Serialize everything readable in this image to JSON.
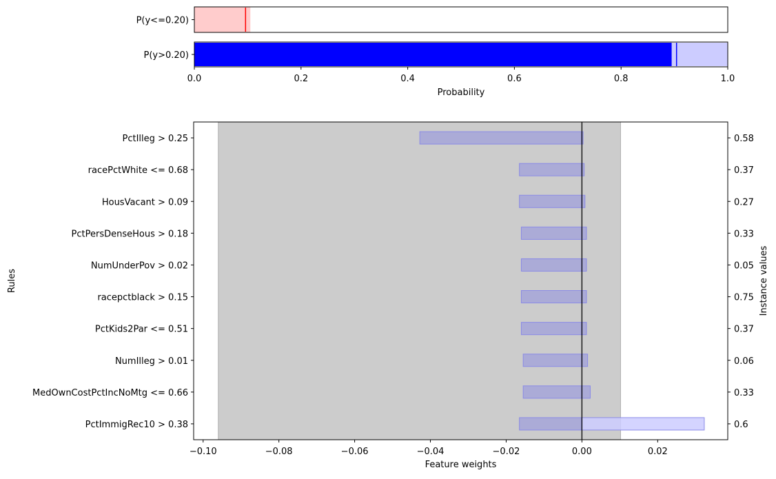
{
  "chart_data": [
    {
      "type": "bar",
      "orientation": "horizontal",
      "xlabel": "Probability",
      "xlim": [
        0,
        1
      ],
      "xticks": [
        "0.0",
        "0.2",
        "0.4",
        "0.6",
        "0.8",
        "1.0"
      ],
      "rows": [
        {
          "label": "P(y<=0.20)",
          "value": 0.096,
          "low": 0.0,
          "high": 0.105,
          "color": "#ff0000",
          "fill": "#ffcccc"
        },
        {
          "label": "P(y>0.20)",
          "value": 0.904,
          "low": 0.895,
          "high": 1.0,
          "color": "#0000ff",
          "fill": "#ccccff"
        }
      ]
    },
    {
      "type": "bar",
      "orientation": "horizontal",
      "xlabel": "Feature weights",
      "ylabel": "Rules",
      "y2label": "Instance values",
      "xlim": [
        -0.1025,
        0.0385
      ],
      "xticks": [
        "−0.10",
        "−0.08",
        "−0.06",
        "−0.04",
        "−0.02",
        "0.00",
        "0.02"
      ],
      "xtick_values": [
        -0.1,
        -0.08,
        -0.06,
        -0.04,
        -0.02,
        0.0,
        0.02
      ],
      "uncertainty_band": [
        -0.096,
        0.0102
      ],
      "rules": [
        {
          "label": "PctIlleg > 0.25",
          "weight": 0.0,
          "low": -0.0428,
          "high": 0.0003,
          "instance_value": "0.58"
        },
        {
          "label": "racePctWhite <= 0.68",
          "weight": 0.0,
          "low": -0.0165,
          "high": 0.0006,
          "instance_value": "0.37"
        },
        {
          "label": "HousVacant > 0.09",
          "weight": 0.0,
          "low": -0.0165,
          "high": 0.0008,
          "instance_value": "0.27"
        },
        {
          "label": "PctPersDenseHous > 0.18",
          "weight": 0.0,
          "low": -0.016,
          "high": 0.0012,
          "instance_value": "0.33"
        },
        {
          "label": "NumUnderPov > 0.02",
          "weight": 0.0,
          "low": -0.016,
          "high": 0.0012,
          "instance_value": "0.05"
        },
        {
          "label": "racepctblack > 0.15",
          "weight": 0.0,
          "low": -0.016,
          "high": 0.0012,
          "instance_value": "0.75"
        },
        {
          "label": "PctKids2Par <= 0.51",
          "weight": 0.0,
          "low": -0.016,
          "high": 0.0012,
          "instance_value": "0.37"
        },
        {
          "label": "NumIlleg > 0.01",
          "weight": 0.0,
          "low": -0.0155,
          "high": 0.0015,
          "instance_value": "0.06"
        },
        {
          "label": "MedOwnCostPctIncNoMtg <= 0.66",
          "weight": 0.0,
          "low": -0.0155,
          "high": 0.0022,
          "instance_value": "0.33"
        },
        {
          "label": "PctImmigRec10 > 0.38",
          "weight": 0.0,
          "low": -0.0165,
          "high": 0.0323,
          "instance_value": "0.6"
        }
      ]
    }
  ],
  "colors": {
    "neg_fill": "#ccccff",
    "pos_fill": "#a4a4d8",
    "band": "#cccccc"
  }
}
